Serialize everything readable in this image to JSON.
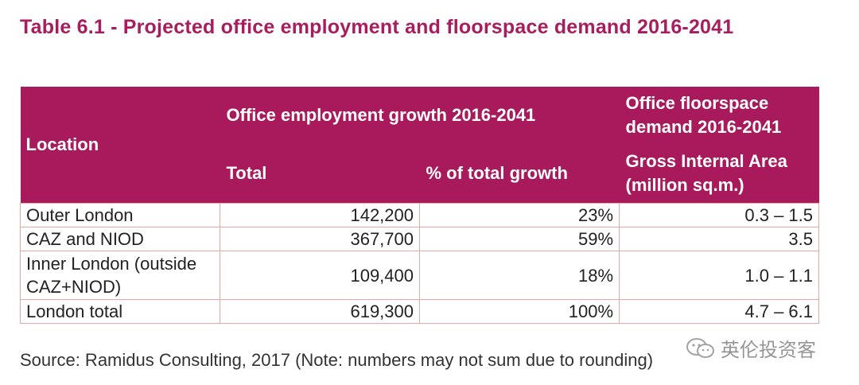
{
  "title": "Table 6.1 - Projected office employment and floorspace demand 2016-2041",
  "header": {
    "location": "Location",
    "employment_group": "Office employment growth 2016-2041",
    "floorspace_group": "Office floorspace demand 2016-2041",
    "total": "Total",
    "pct_growth": "% of total growth",
    "gia": "Gross Internal Area (million sq.m.)"
  },
  "rows": [
    {
      "location": "Outer London",
      "total": "142,200",
      "pct": "23%",
      "gia": "0.3 – 1.5"
    },
    {
      "location": "CAZ and NIOD",
      "total": "367,700",
      "pct": "59%",
      "gia": "3.5"
    },
    {
      "location": "Inner London (outside CAZ+NIOD)",
      "total": "109,400",
      "pct": "18%",
      "gia": "1.0 – 1.1"
    },
    {
      "location": "London total",
      "total": "619,300",
      "pct": "100%",
      "gia": "4.7 – 6.1"
    }
  ],
  "source": "Source: Ramidus Consulting, 2017 (Note: numbers may not sum due to rounding)",
  "watermark": "英伦投资客",
  "colors": {
    "accent": "#a81a5c",
    "border": "#e7a9a3"
  }
}
